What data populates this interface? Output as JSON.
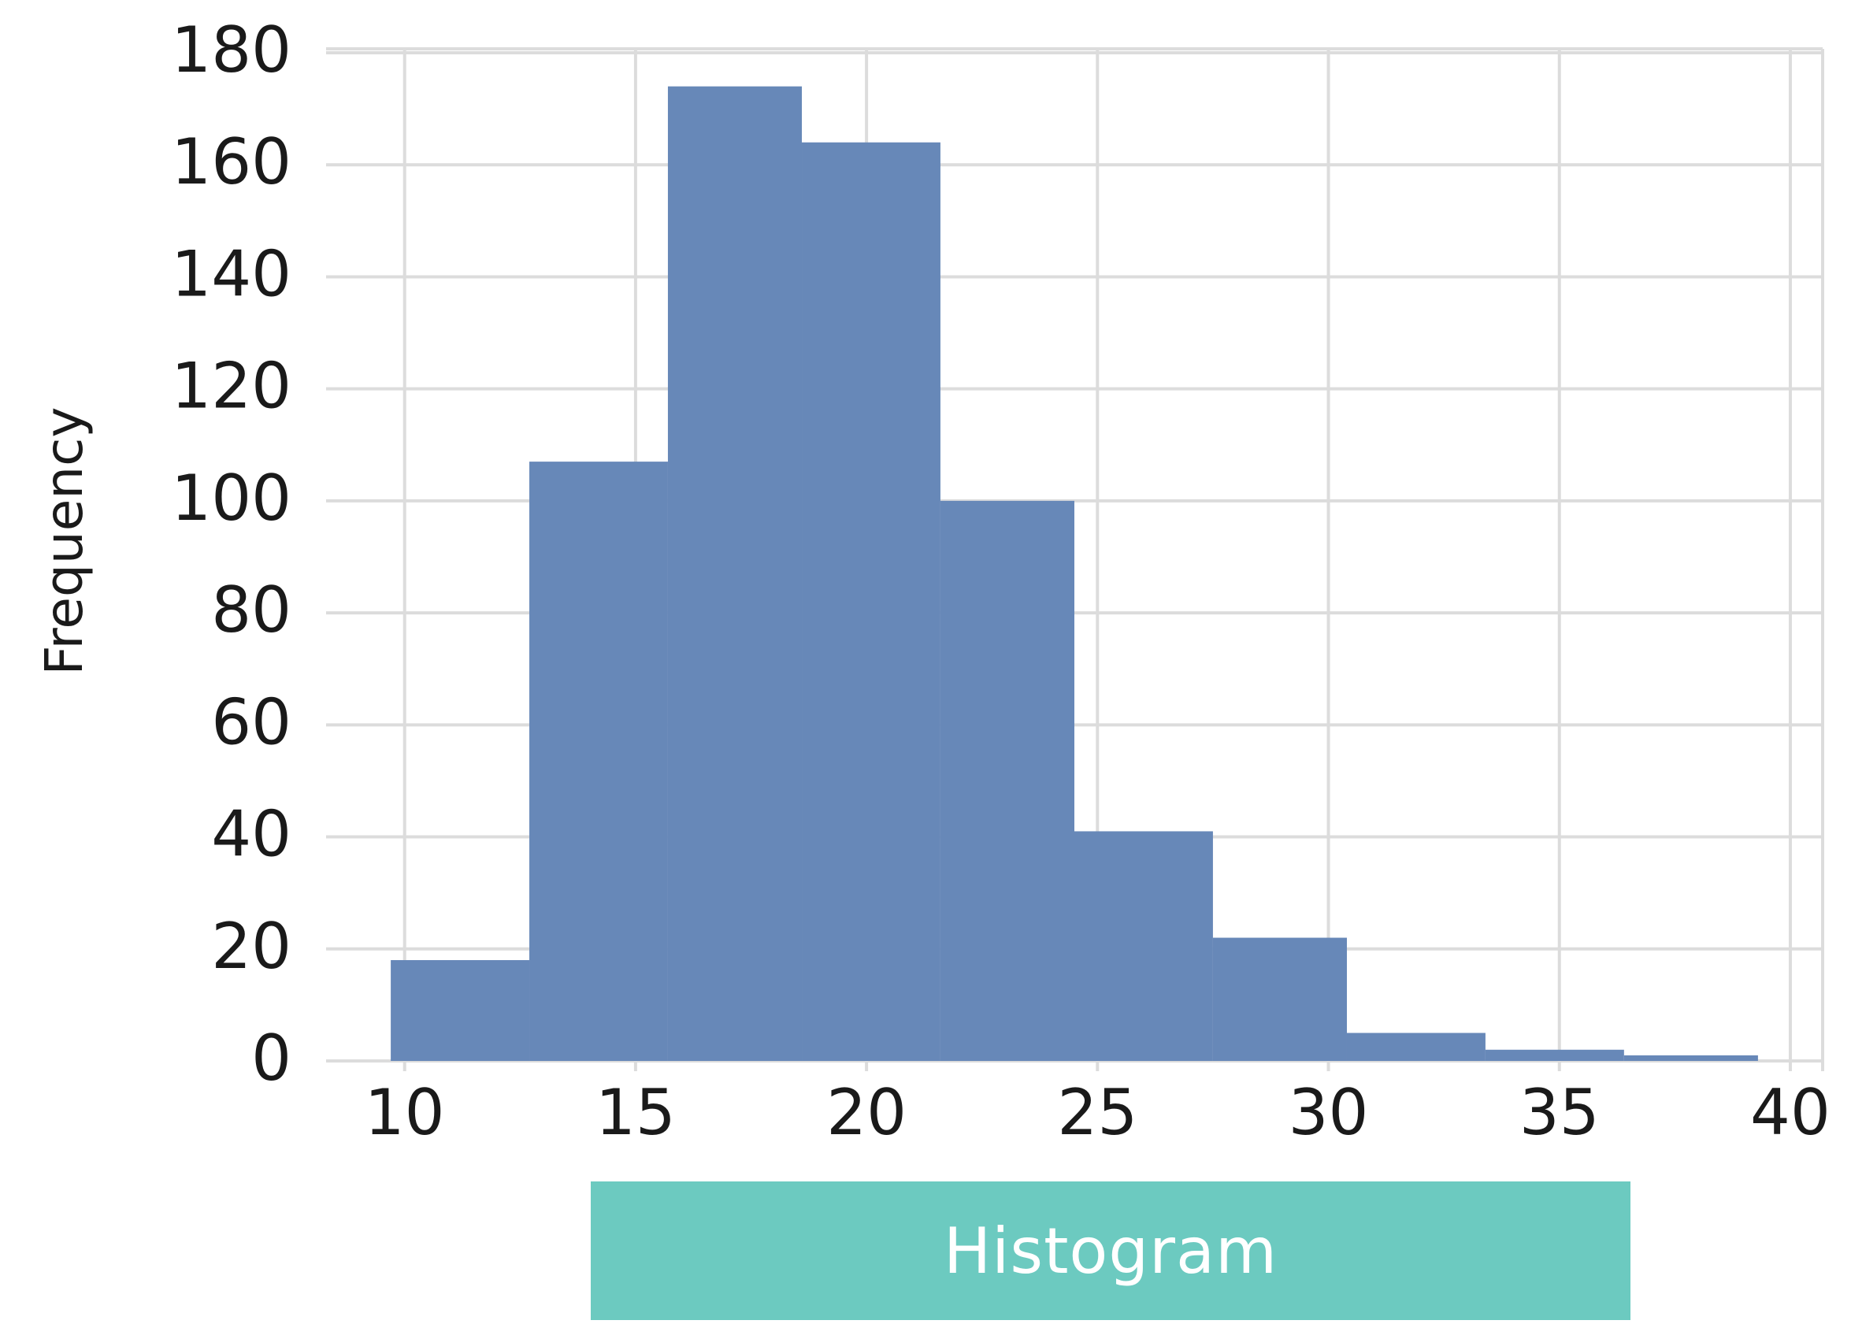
{
  "chart_data": {
    "type": "bar",
    "bin_edges": [
      9.7,
      12.7,
      15.7,
      18.6,
      21.6,
      24.5,
      27.5,
      30.4,
      33.4,
      36.4,
      39.3
    ],
    "values": [
      18,
      107,
      174,
      164,
      100,
      41,
      22,
      5,
      2,
      1
    ],
    "xlabel": "",
    "ylabel": "Frequency",
    "xlim": [
      8.3,
      40.7
    ],
    "ylim": [
      0,
      180
    ],
    "xticks": [
      10,
      15,
      20,
      25,
      30,
      35,
      40
    ],
    "yticks": [
      0,
      20,
      40,
      60,
      80,
      100,
      120,
      140,
      160,
      180
    ],
    "grid": true,
    "colors": {
      "bar": "#6788b8",
      "grid": "#dcdcdc",
      "caption_bg": "#6ccac0"
    }
  },
  "caption": {
    "label": "Histogram"
  }
}
